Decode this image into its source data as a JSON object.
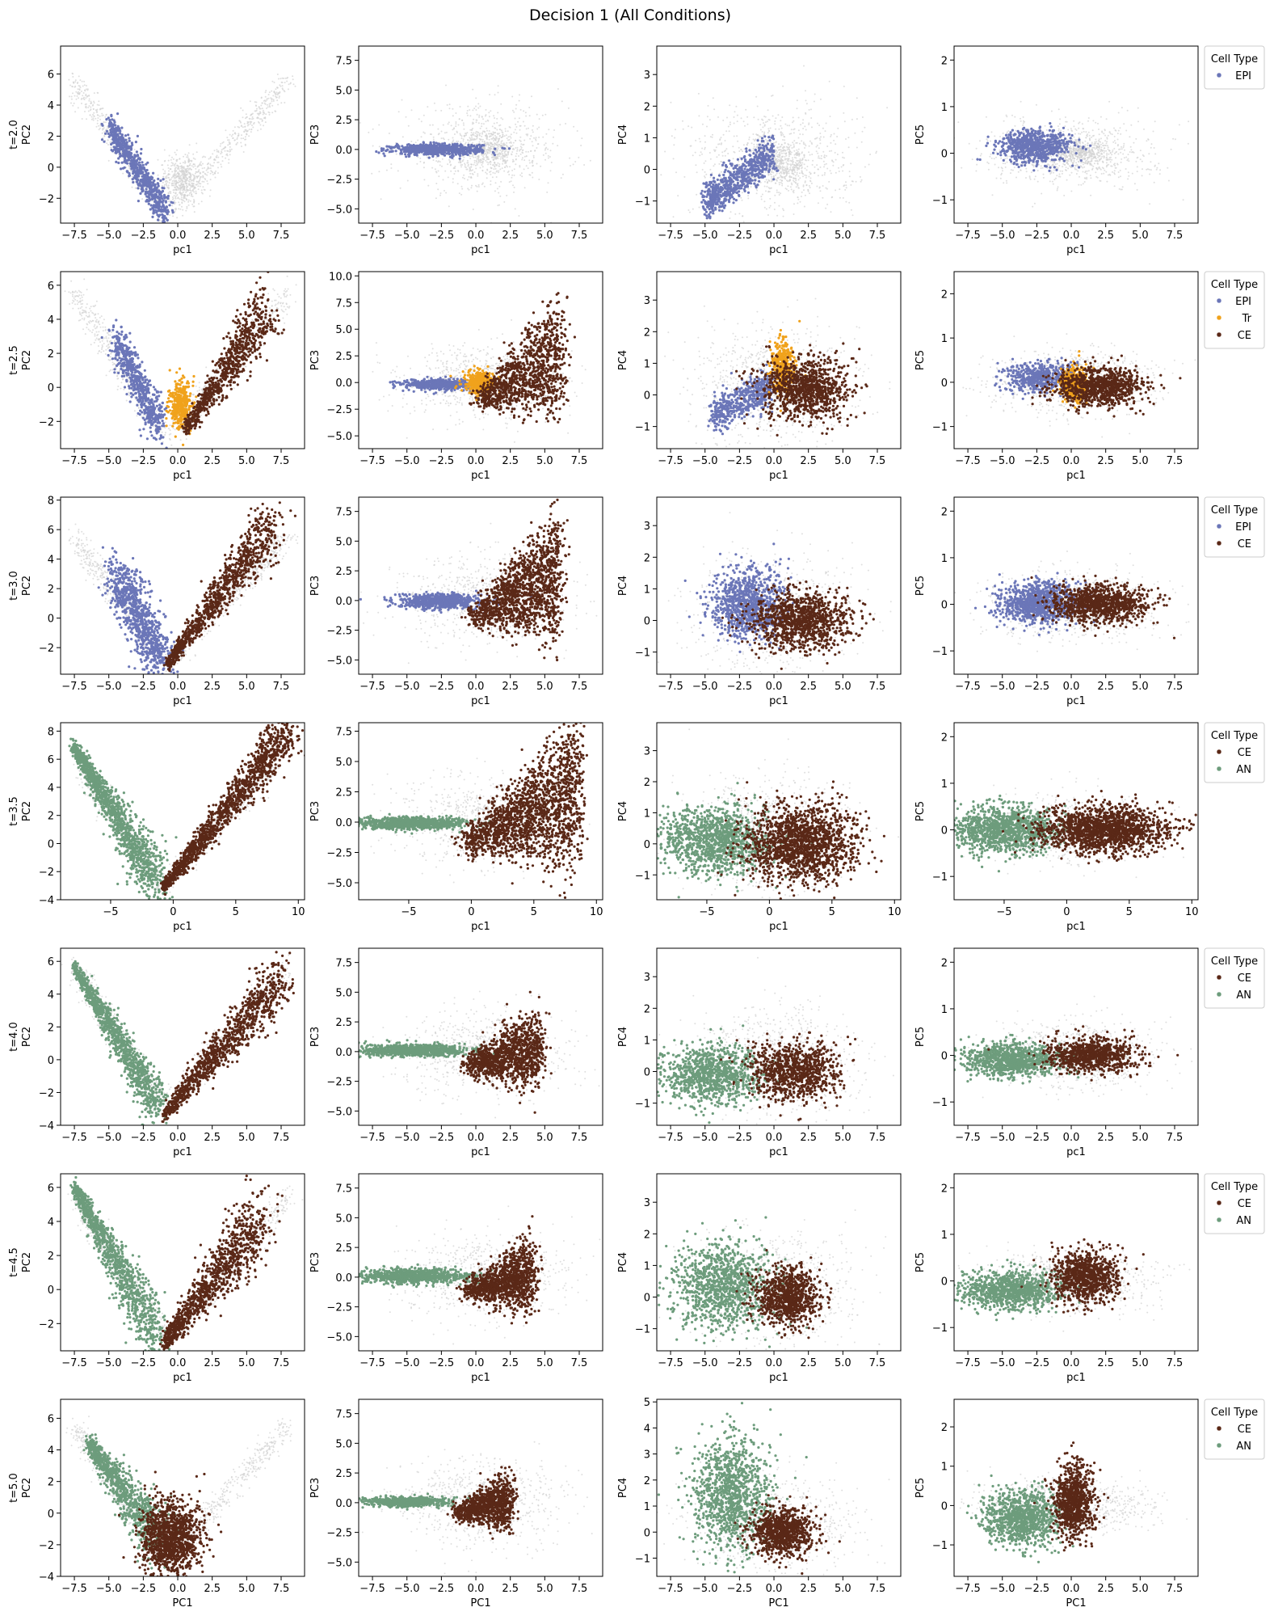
{
  "figure": {
    "title": "Decision 1 (All Conditions)",
    "legend_title": "Cell Type",
    "background_color": "#d2d2d2",
    "colors": {
      "EPI": "#6b76b8",
      "Tr": "#f0a21c",
      "CE": "#5a2817",
      "AN": "#6d9c7c"
    }
  },
  "chart_data": {
    "type": "scatter",
    "x_ticks_75": [
      "−7.5",
      "−5.0",
      "−2.5",
      "0.0",
      "2.5",
      "5.0",
      "7.5"
    ],
    "x_ticks_5": [
      "−5",
      "0",
      "5",
      "10"
    ],
    "rows": [
      {
        "row_label": "t=2.0",
        "xlim": [
          -8.5,
          9.2
        ],
        "x_ticks": "x75",
        "legend": [
          "EPI"
        ],
        "panels": [
          {
            "xlabel": "pc1",
            "ylabel": "PC2",
            "ylim": [
              -3.6,
              7.8
            ],
            "yticks": [
              -2,
              0,
              2,
              4,
              6
            ],
            "ytick_labels": [
              "−2",
              "0",
              "2",
              "4",
              "6"
            ]
          },
          {
            "xlabel": "pc1",
            "ylabel": "PC3",
            "ylim": [
              -6.2,
              8.7
            ],
            "yticks": [
              -5,
              -2.5,
              0,
              2.5,
              5,
              7.5
            ],
            "ytick_labels": [
              "−5.0",
              "−2.5",
              "0.0",
              "2.5",
              "5.0",
              "7.5"
            ]
          },
          {
            "xlabel": "pc1",
            "ylabel": "PC4",
            "ylim": [
              -1.7,
              3.9
            ],
            "yticks": [
              -1,
              0,
              1,
              2,
              3
            ],
            "ytick_labels": [
              "−1",
              "0",
              "1",
              "2",
              "3"
            ]
          },
          {
            "xlabel": "pc1",
            "ylabel": "PC5",
            "ylim": [
              -1.5,
              2.3
            ],
            "yticks": [
              -1,
              0,
              1,
              2
            ],
            "ytick_labels": [
              "−1",
              "0",
              "1",
              "2"
            ]
          }
        ]
      },
      {
        "row_label": "t=2.5",
        "xlim": [
          -8.5,
          9.2
        ],
        "x_ticks": "x75",
        "legend": [
          "EPI",
          "Tr",
          "CE"
        ],
        "panels": [
          {
            "xlabel": "pc1",
            "ylabel": "PC2",
            "ylim": [
              -3.6,
              6.8
            ],
            "yticks": [
              -2,
              0,
              2,
              4,
              6
            ],
            "ytick_labels": [
              "−2",
              "0",
              "2",
              "4",
              "6"
            ]
          },
          {
            "xlabel": "pc1",
            "ylabel": "PC3",
            "ylim": [
              -6.2,
              10.4
            ],
            "yticks": [
              -5,
              -2.5,
              0,
              2.5,
              5,
              7.5,
              10
            ],
            "ytick_labels": [
              "−5.0",
              "−2.5",
              "0.0",
              "2.5",
              "5.0",
              "7.5",
              "10.0"
            ]
          },
          {
            "xlabel": "pc1",
            "ylabel": "PC4",
            "ylim": [
              -1.7,
              3.9
            ],
            "yticks": [
              -1,
              0,
              1,
              2,
              3
            ],
            "ytick_labels": [
              "−1",
              "0",
              "1",
              "2",
              "3"
            ]
          },
          {
            "xlabel": "pc1",
            "ylabel": "PC5",
            "ylim": [
              -1.5,
              2.5
            ],
            "yticks": [
              -1,
              0,
              1,
              2
            ],
            "ytick_labels": [
              "−1",
              "0",
              "1",
              "2"
            ]
          }
        ]
      },
      {
        "row_label": "t=3.0",
        "xlim": [
          -8.5,
          9.2
        ],
        "x_ticks": "x75",
        "legend": [
          "EPI",
          "CE"
        ],
        "panels": [
          {
            "xlabel": "pc1",
            "ylabel": "PC2",
            "ylim": [
              -3.8,
              8.2
            ],
            "yticks": [
              -2,
              0,
              2,
              4,
              6,
              8
            ],
            "ytick_labels": [
              "−2",
              "0",
              "2",
              "4",
              "6",
              "8"
            ]
          },
          {
            "xlabel": "pc1",
            "ylabel": "PC3",
            "ylim": [
              -6.2,
              8.7
            ],
            "yticks": [
              -5,
              -2.5,
              0,
              2.5,
              5,
              7.5
            ],
            "ytick_labels": [
              "−5.0",
              "−2.5",
              "0.0",
              "2.5",
              "5.0",
              "7.5"
            ]
          },
          {
            "xlabel": "pc1",
            "ylabel": "PC4",
            "ylim": [
              -1.7,
              3.9
            ],
            "yticks": [
              -1,
              0,
              1,
              2,
              3
            ],
            "ytick_labels": [
              "−1",
              "0",
              "1",
              "2",
              "3"
            ]
          },
          {
            "xlabel": "pc1",
            "ylabel": "PC5",
            "ylim": [
              -1.5,
              2.3
            ],
            "yticks": [
              -1,
              0,
              1,
              2
            ],
            "ytick_labels": [
              "−1",
              "0",
              "1",
              "2"
            ]
          }
        ]
      },
      {
        "row_label": "t=3.5",
        "xlim": [
          -9.0,
          10.5
        ],
        "x_ticks": "x5",
        "legend": [
          "CE",
          "AN"
        ],
        "panels": [
          {
            "xlabel": "pc1",
            "ylabel": "PC2",
            "ylim": [
              -4.0,
              8.6
            ],
            "yticks": [
              -4,
              -2,
              0,
              2,
              4,
              6,
              8
            ],
            "ytick_labels": [
              "−4",
              "−2",
              "0",
              "2",
              "4",
              "6",
              "8"
            ]
          },
          {
            "xlabel": "pc1",
            "ylabel": "PC3",
            "ylim": [
              -6.4,
              8.2
            ],
            "yticks": [
              -5,
              -2.5,
              0,
              2.5,
              5,
              7.5
            ],
            "ytick_labels": [
              "−5.0",
              "−2.5",
              "0.0",
              "2.5",
              "5.0",
              "7.5"
            ]
          },
          {
            "xlabel": "pc1",
            "ylabel": "PC4",
            "ylim": [
              -1.8,
              3.9
            ],
            "yticks": [
              -1,
              0,
              1,
              2,
              3
            ],
            "ytick_labels": [
              "−1",
              "0",
              "1",
              "2",
              "3"
            ]
          },
          {
            "xlabel": "pc1",
            "ylabel": "PC5",
            "ylim": [
              -1.5,
              2.3
            ],
            "yticks": [
              -1,
              0,
              1,
              2
            ],
            "ytick_labels": [
              "−1",
              "0",
              "1",
              "2"
            ]
          }
        ]
      },
      {
        "row_label": "t=4.0",
        "xlim": [
          -8.5,
          9.2
        ],
        "x_ticks": "x75",
        "legend": [
          "CE",
          "AN"
        ],
        "panels": [
          {
            "xlabel": "pc1",
            "ylabel": "PC2",
            "ylim": [
              -4.0,
              6.8
            ],
            "yticks": [
              -4,
              -2,
              0,
              2,
              4,
              6
            ],
            "ytick_labels": [
              "−4",
              "−2",
              "0",
              "2",
              "4",
              "6"
            ]
          },
          {
            "xlabel": "pc1",
            "ylabel": "PC3",
            "ylim": [
              -6.2,
              8.7
            ],
            "yticks": [
              -5,
              -2.5,
              0,
              2.5,
              5,
              7.5
            ],
            "ytick_labels": [
              "−5.0",
              "−2.5",
              "0.0",
              "2.5",
              "5.0",
              "7.5"
            ]
          },
          {
            "xlabel": "pc1",
            "ylabel": "PC4",
            "ylim": [
              -1.7,
              3.9
            ],
            "yticks": [
              -1,
              0,
              1,
              2,
              3
            ],
            "ytick_labels": [
              "−1",
              "0",
              "1",
              "2",
              "3"
            ]
          },
          {
            "xlabel": "pc1",
            "ylabel": "PC5",
            "ylim": [
              -1.5,
              2.3
            ],
            "yticks": [
              -1,
              0,
              1,
              2
            ],
            "ytick_labels": [
              "−1",
              "0",
              "1",
              "2"
            ]
          }
        ]
      },
      {
        "row_label": "t=4.5",
        "xlim": [
          -8.5,
          9.2
        ],
        "x_ticks": "x75",
        "legend": [
          "CE",
          "AN"
        ],
        "panels": [
          {
            "xlabel": "pc1",
            "ylabel": "PC2",
            "ylim": [
              -3.6,
              6.8
            ],
            "yticks": [
              -2,
              0,
              2,
              4,
              6
            ],
            "ytick_labels": [
              "−2",
              "0",
              "2",
              "4",
              "6"
            ]
          },
          {
            "xlabel": "pc1",
            "ylabel": "PC3",
            "ylim": [
              -6.2,
              8.7
            ],
            "yticks": [
              -5,
              -2.5,
              0,
              2.5,
              5,
              7.5
            ],
            "ytick_labels": [
              "−5.0",
              "−2.5",
              "0.0",
              "2.5",
              "5.0",
              "7.5"
            ]
          },
          {
            "xlabel": "pc1",
            "ylabel": "PC4",
            "ylim": [
              -1.7,
              3.9
            ],
            "yticks": [
              -1,
              0,
              1,
              2,
              3
            ],
            "ytick_labels": [
              "−1",
              "0",
              "1",
              "2",
              "3"
            ]
          },
          {
            "xlabel": "pc1",
            "ylabel": "PC5",
            "ylim": [
              -1.5,
              2.3
            ],
            "yticks": [
              -1,
              0,
              1,
              2
            ],
            "ytick_labels": [
              "−1",
              "0",
              "1",
              "2"
            ]
          }
        ]
      },
      {
        "row_label": "t=5.0",
        "xlim": [
          -8.5,
          9.2
        ],
        "x_ticks": "x75",
        "legend": [
          "CE",
          "AN"
        ],
        "panels": [
          {
            "xlabel": "PC1",
            "ylabel": "PC2",
            "ylim": [
              -4.0,
              7.2
            ],
            "yticks": [
              -4,
              -2,
              0,
              2,
              4,
              6
            ],
            "ytick_labels": [
              "−4",
              "−2",
              "0",
              "2",
              "4",
              "6"
            ]
          },
          {
            "xlabel": "PC1",
            "ylabel": "PC3",
            "ylim": [
              -6.2,
              8.7
            ],
            "yticks": [
              -5,
              -2.5,
              0,
              2.5,
              5,
              7.5
            ],
            "ytick_labels": [
              "−5.0",
              "−2.5",
              "0.0",
              "2.5",
              "5.0",
              "7.5"
            ]
          },
          {
            "xlabel": "PC1",
            "ylabel": "PC4",
            "ylim": [
              -1.7,
              5.1
            ],
            "yticks": [
              -1,
              0,
              1,
              2,
              3,
              4,
              5
            ],
            "ytick_labels": [
              "−1",
              "0",
              "1",
              "2",
              "3",
              "4",
              "5"
            ]
          },
          {
            "xlabel": "PC1",
            "ylabel": "PC5",
            "ylim": [
              -1.8,
              2.7
            ],
            "yticks": [
              -1,
              0,
              1,
              2
            ],
            "ytick_labels": [
              "−1",
              "0",
              "1",
              "2"
            ]
          }
        ]
      }
    ],
    "clusters": {
      "t=2.0": [
        {
          "type": "background",
          "panel": 0,
          "shape": "v",
          "x": [
            -8,
            8.5
          ],
          "tip": [
            -0.8,
            -3
          ],
          "left_top": 5.5,
          "right_top": 6.5,
          "n": 700
        },
        {
          "type": "background",
          "panel": 1,
          "shape": "blob",
          "cx": 0.5,
          "cy": 0,
          "sx": 3,
          "sy": 1.8,
          "n": 600
        },
        {
          "type": "background",
          "panel": 2,
          "shape": "blob",
          "cx": 0,
          "cy": 0.3,
          "sx": 3,
          "sy": 0.9,
          "n": 600
        },
        {
          "type": "background",
          "panel": 3,
          "shape": "blob",
          "cx": 0,
          "cy": 0,
          "sx": 3,
          "sy": 0.35,
          "n": 600
        },
        {
          "type": "cell",
          "panel": 0,
          "label": "EPI",
          "shape": "band",
          "x0": -5,
          "y0": 2.6,
          "x1": -0.8,
          "y1": -3,
          "w": 0.45,
          "n": 650
        },
        {
          "type": "cell",
          "panel": 1,
          "label": "EPI",
          "shape": "blob",
          "cx": -2.8,
          "cy": 0,
          "sx": 1.6,
          "sy": 0.22,
          "n": 650
        },
        {
          "type": "cell",
          "panel": 2,
          "label": "EPI",
          "shape": "band",
          "x0": -5,
          "y0": -1,
          "x1": 0,
          "y1": 0.5,
          "w": 0.28,
          "n": 650
        },
        {
          "type": "cell",
          "panel": 3,
          "label": "EPI",
          "shape": "blob",
          "cx": -2.6,
          "cy": 0.15,
          "sx": 1.3,
          "sy": 0.18,
          "n": 650
        }
      ]
    }
  }
}
